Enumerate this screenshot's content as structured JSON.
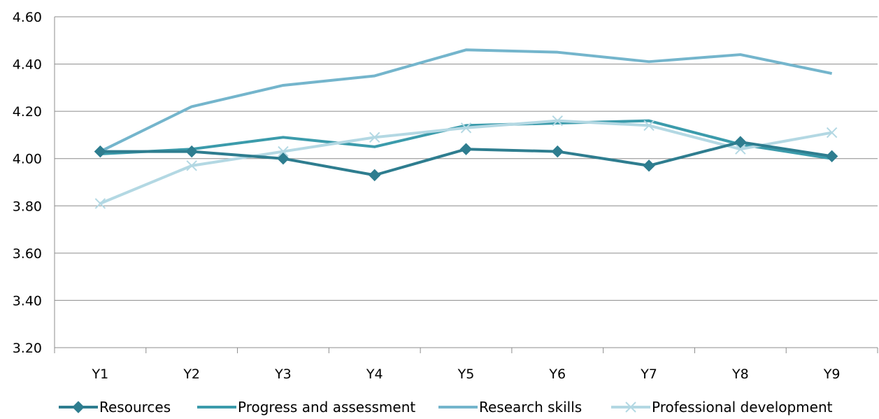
{
  "chart_data": {
    "type": "line",
    "categories": [
      "Y1",
      "Y2",
      "Y3",
      "Y4",
      "Y5",
      "Y6",
      "Y7",
      "Y8",
      "Y9"
    ],
    "series": [
      {
        "name": "Resources",
        "color": "#2e7d8f",
        "marker": "diamond",
        "values": [
          4.03,
          4.03,
          4.0,
          3.93,
          4.04,
          4.03,
          3.97,
          4.07,
          4.01
        ]
      },
      {
        "name": "Progress and assessment",
        "color": "#3b9bab",
        "marker": "none",
        "values": [
          4.02,
          4.04,
          4.09,
          4.05,
          4.14,
          4.15,
          4.16,
          4.06,
          4.0
        ]
      },
      {
        "name": "Research skills",
        "color": "#74b5cc",
        "marker": "none",
        "values": [
          4.03,
          4.22,
          4.31,
          4.35,
          4.46,
          4.45,
          4.41,
          4.44,
          4.36
        ]
      },
      {
        "name": "Professional development",
        "color": "#b3d8e3",
        "marker": "x",
        "values": [
          3.81,
          3.97,
          4.03,
          4.09,
          4.13,
          4.16,
          4.14,
          4.04,
          4.11
        ]
      }
    ],
    "ylim": [
      3.2,
      4.6
    ],
    "yticks": [
      "3.20",
      "3.40",
      "3.60",
      "3.80",
      "4.00",
      "4.20",
      "4.40",
      "4.60"
    ],
    "grid": "horizontal",
    "legend": "bottom"
  }
}
